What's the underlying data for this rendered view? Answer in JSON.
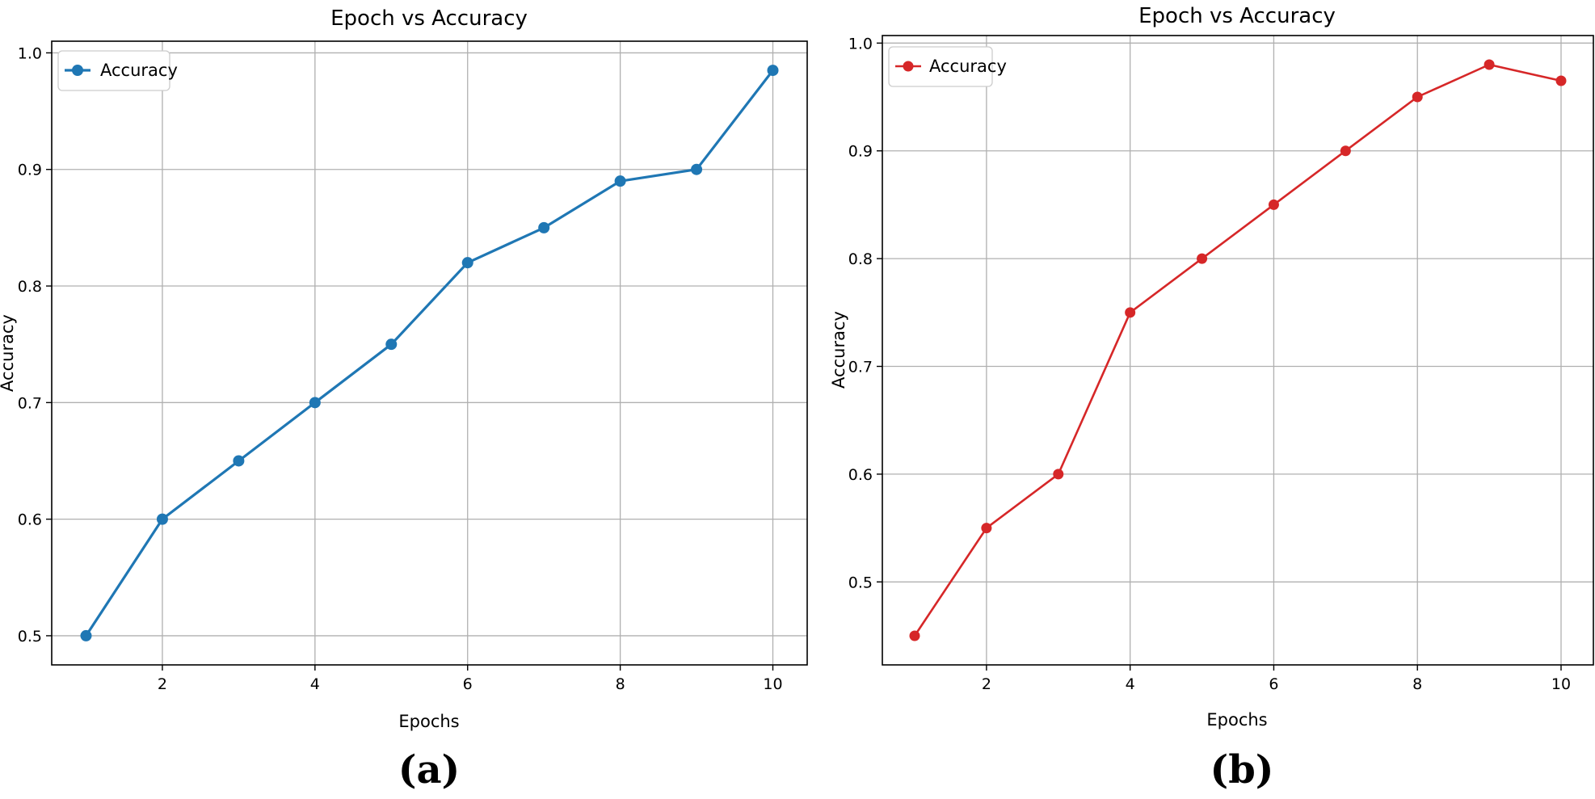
{
  "chart_data": [
    {
      "panel": "(a)",
      "type": "line",
      "title": "Epoch vs Accuracy",
      "xlabel": "Epochs",
      "ylabel": "Accuracy",
      "x": [
        1,
        2,
        3,
        4,
        5,
        6,
        7,
        8,
        9,
        10
      ],
      "series": [
        {
          "name": "Accuracy",
          "color": "#1f77b4",
          "values": [
            0.5,
            0.6,
            0.65,
            0.7,
            0.75,
            0.82,
            0.85,
            0.89,
            0.9,
            0.985
          ]
        }
      ],
      "xlim": [
        0.55,
        10.45
      ],
      "ylim": [
        0.475,
        1.01
      ],
      "xticks": [
        2,
        4,
        6,
        8,
        10
      ],
      "xtick_labels": [
        "2",
        "4",
        "6",
        "8",
        "10"
      ],
      "yticks": [
        0.5,
        0.6,
        0.7,
        0.8,
        0.9,
        1.0
      ],
      "ytick_labels": [
        "0.5",
        "0.6",
        "0.7",
        "0.8",
        "0.9",
        "1.0"
      ],
      "grid": true,
      "legend": "top-left"
    },
    {
      "panel": "(b)",
      "type": "line",
      "title": "Epoch vs Accuracy",
      "xlabel": "Epochs",
      "ylabel": "Accuracy",
      "x": [
        1,
        2,
        3,
        4,
        5,
        6,
        7,
        8,
        9,
        10
      ],
      "series": [
        {
          "name": "Accuracy",
          "color": "#d62728",
          "values": [
            0.45,
            0.55,
            0.6,
            0.75,
            0.8,
            0.85,
            0.9,
            0.95,
            0.98,
            0.965
          ]
        }
      ],
      "xlim": [
        0.55,
        10.45
      ],
      "ylim": [
        0.423,
        1.007
      ],
      "xticks": [
        2,
        4,
        6,
        8,
        10
      ],
      "xtick_labels": [
        "2",
        "4",
        "6",
        "8",
        "10"
      ],
      "yticks": [
        0.5,
        0.6,
        0.7,
        0.8,
        0.9,
        1.0
      ],
      "ytick_labels": [
        "0.5",
        "0.6",
        "0.7",
        "0.8",
        "0.9",
        "1.0"
      ],
      "grid": true,
      "legend": "top-left"
    }
  ]
}
